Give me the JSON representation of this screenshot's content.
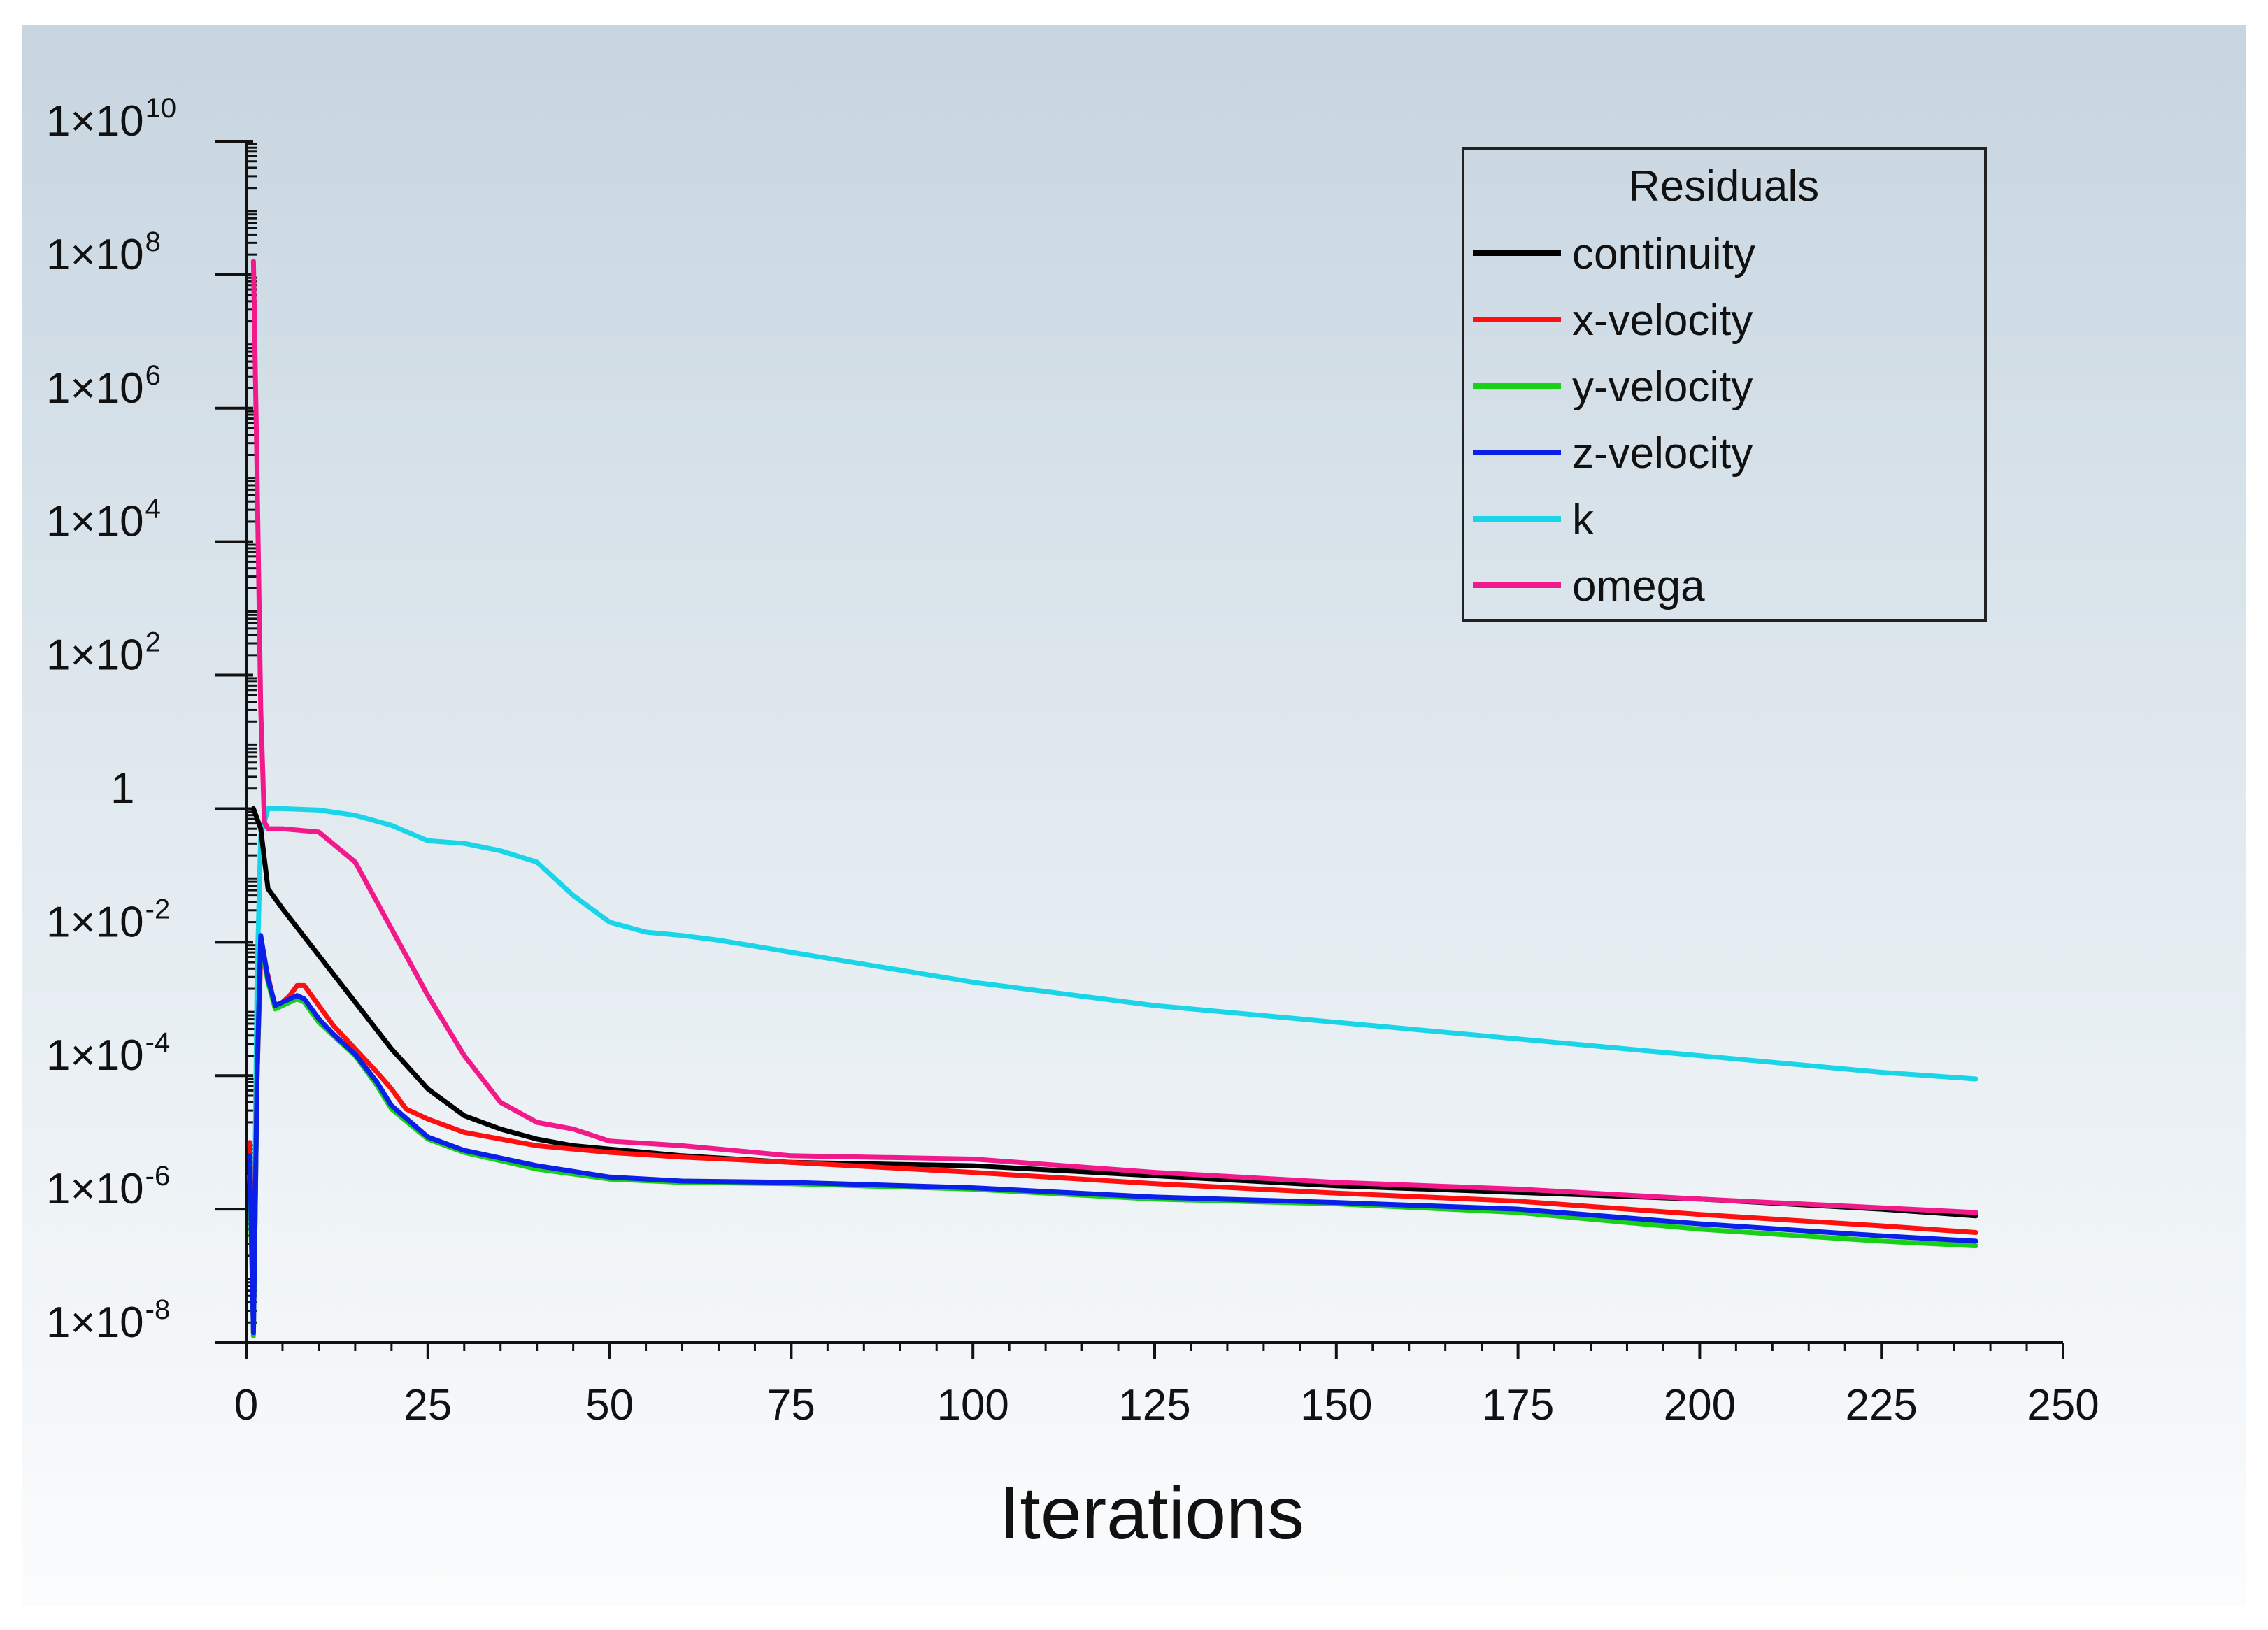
{
  "chart_data": {
    "type": "line",
    "title": "",
    "xlabel": "Iterations",
    "ylabel": "",
    "yscale": "log",
    "xlim": [
      0,
      250
    ],
    "ylim_exponent": [
      -8,
      10
    ],
    "x_ticks": [
      0,
      25,
      50,
      75,
      100,
      125,
      150,
      175,
      200,
      225,
      250
    ],
    "y_ticks": [
      {
        "exp": 10,
        "base": "1×10",
        "sup": "10"
      },
      {
        "exp": 8,
        "base": "1×10",
        "sup": "8"
      },
      {
        "exp": 6,
        "base": "1×10",
        "sup": "6"
      },
      {
        "exp": 4,
        "base": "1×10",
        "sup": "4"
      },
      {
        "exp": 2,
        "base": "1×10",
        "sup": "2"
      },
      {
        "exp": 0,
        "base": "1",
        "sup": ""
      },
      {
        "exp": -2,
        "base": "1×10",
        "sup": "-2"
      },
      {
        "exp": -4,
        "base": "1×10",
        "sup": "-4"
      },
      {
        "exp": -6,
        "base": "1×10",
        "sup": "-6"
      },
      {
        "exp": -8,
        "base": "1×10",
        "sup": "-8"
      }
    ],
    "grid": false,
    "legend": {
      "title": "Residuals",
      "placement": "top-right"
    },
    "series": [
      {
        "name": "continuity",
        "color": "#000000",
        "log10_points": [
          [
            1,
            0
          ],
          [
            2,
            -0.3
          ],
          [
            3,
            -1.2
          ],
          [
            5,
            -1.5
          ],
          [
            10,
            -2.2
          ],
          [
            15,
            -2.9
          ],
          [
            20,
            -3.6
          ],
          [
            25,
            -4.2
          ],
          [
            30,
            -4.6
          ],
          [
            35,
            -4.8
          ],
          [
            40,
            -4.95
          ],
          [
            45,
            -5.05
          ],
          [
            50,
            -5.1
          ],
          [
            60,
            -5.2
          ],
          [
            75,
            -5.3
          ],
          [
            100,
            -5.35
          ],
          [
            125,
            -5.5
          ],
          [
            150,
            -5.65
          ],
          [
            175,
            -5.75
          ],
          [
            200,
            -5.85
          ],
          [
            225,
            -6.0
          ],
          [
            238,
            -6.1
          ]
        ]
      },
      {
        "name": "x-velocity",
        "color": "#ff1010",
        "log10_points": [
          [
            0.5,
            -5
          ],
          [
            1,
            -7.8
          ],
          [
            1.5,
            -4
          ],
          [
            2,
            -2.2
          ],
          [
            3,
            -2.5
          ],
          [
            4,
            -3.0
          ],
          [
            6,
            -2.8
          ],
          [
            7,
            -2.65
          ],
          [
            8,
            -2.65
          ],
          [
            10,
            -2.95
          ],
          [
            12,
            -3.25
          ],
          [
            15,
            -3.6
          ],
          [
            18,
            -3.95
          ],
          [
            20,
            -4.2
          ],
          [
            22,
            -4.5
          ],
          [
            25,
            -4.65
          ],
          [
            30,
            -4.85
          ],
          [
            40,
            -5.05
          ],
          [
            50,
            -5.15
          ],
          [
            60,
            -5.22
          ],
          [
            75,
            -5.3
          ],
          [
            100,
            -5.45
          ],
          [
            125,
            -5.62
          ],
          [
            150,
            -5.76
          ],
          [
            175,
            -5.88
          ],
          [
            200,
            -6.08
          ],
          [
            225,
            -6.25
          ],
          [
            238,
            -6.35
          ]
        ]
      },
      {
        "name": "y-velocity",
        "color": "#18d018",
        "log10_points": [
          [
            0.5,
            -5.5
          ],
          [
            1,
            -7.9
          ],
          [
            1.5,
            -4
          ],
          [
            2,
            -2.0
          ],
          [
            3,
            -2.6
          ],
          [
            4,
            -3.0
          ],
          [
            6,
            -2.9
          ],
          [
            7,
            -2.85
          ],
          [
            8,
            -2.9
          ],
          [
            10,
            -3.2
          ],
          [
            12,
            -3.4
          ],
          [
            15,
            -3.7
          ],
          [
            18,
            -4.15
          ],
          [
            20,
            -4.5
          ],
          [
            25,
            -4.95
          ],
          [
            30,
            -5.15
          ],
          [
            40,
            -5.4
          ],
          [
            50,
            -5.55
          ],
          [
            60,
            -5.6
          ],
          [
            75,
            -5.62
          ],
          [
            100,
            -5.7
          ],
          [
            125,
            -5.85
          ],
          [
            150,
            -5.92
          ],
          [
            175,
            -6.05
          ],
          [
            200,
            -6.3
          ],
          [
            225,
            -6.48
          ],
          [
            238,
            -6.55
          ]
        ]
      },
      {
        "name": "z-velocity",
        "color": "#0a20e8",
        "log10_points": [
          [
            0.5,
            -5.2
          ],
          [
            1,
            -7.85
          ],
          [
            1.5,
            -4
          ],
          [
            2,
            -1.9
          ],
          [
            3,
            -2.55
          ],
          [
            4,
            -2.95
          ],
          [
            6,
            -2.85
          ],
          [
            7,
            -2.8
          ],
          [
            8,
            -2.85
          ],
          [
            10,
            -3.15
          ],
          [
            12,
            -3.38
          ],
          [
            15,
            -3.68
          ],
          [
            18,
            -4.1
          ],
          [
            20,
            -4.45
          ],
          [
            25,
            -4.92
          ],
          [
            30,
            -5.12
          ],
          [
            40,
            -5.35
          ],
          [
            50,
            -5.52
          ],
          [
            60,
            -5.58
          ],
          [
            75,
            -5.6
          ],
          [
            100,
            -5.68
          ],
          [
            125,
            -5.82
          ],
          [
            150,
            -5.9
          ],
          [
            175,
            -6.0
          ],
          [
            200,
            -6.22
          ],
          [
            225,
            -6.4
          ],
          [
            238,
            -6.48
          ]
        ]
      },
      {
        "name": "k",
        "color": "#1ad4e8",
        "log10_points": [
          [
            0.5,
            -5.5
          ],
          [
            1,
            -7.5
          ],
          [
            1.5,
            -2.5
          ],
          [
            2,
            -0.4
          ],
          [
            3,
            0
          ],
          [
            5,
            0
          ],
          [
            10,
            -0.02
          ],
          [
            15,
            -0.1
          ],
          [
            20,
            -0.25
          ],
          [
            25,
            -0.48
          ],
          [
            30,
            -0.52
          ],
          [
            35,
            -0.63
          ],
          [
            40,
            -0.8
          ],
          [
            45,
            -1.3
          ],
          [
            50,
            -1.7
          ],
          [
            55,
            -1.85
          ],
          [
            60,
            -1.9
          ],
          [
            65,
            -1.97
          ],
          [
            75,
            -2.15
          ],
          [
            100,
            -2.6
          ],
          [
            125,
            -2.95
          ],
          [
            150,
            -3.2
          ],
          [
            175,
            -3.45
          ],
          [
            200,
            -3.7
          ],
          [
            225,
            -3.95
          ],
          [
            238,
            -4.05
          ]
        ]
      },
      {
        "name": "omega",
        "color": "#f21a8a",
        "log10_points": [
          [
            1,
            8.2
          ],
          [
            1.5,
            5
          ],
          [
            2,
            1.5
          ],
          [
            2.5,
            -0.2
          ],
          [
            3,
            -0.3
          ],
          [
            5,
            -0.3
          ],
          [
            10,
            -0.35
          ],
          [
            15,
            -0.8
          ],
          [
            20,
            -1.8
          ],
          [
            25,
            -2.8
          ],
          [
            30,
            -3.7
          ],
          [
            35,
            -4.4
          ],
          [
            40,
            -4.7
          ],
          [
            45,
            -4.8
          ],
          [
            50,
            -4.98
          ],
          [
            60,
            -5.05
          ],
          [
            75,
            -5.2
          ],
          [
            100,
            -5.25
          ],
          [
            125,
            -5.45
          ],
          [
            150,
            -5.6
          ],
          [
            175,
            -5.7
          ],
          [
            200,
            -5.85
          ],
          [
            225,
            -5.98
          ],
          [
            238,
            -6.05
          ]
        ]
      }
    ]
  }
}
